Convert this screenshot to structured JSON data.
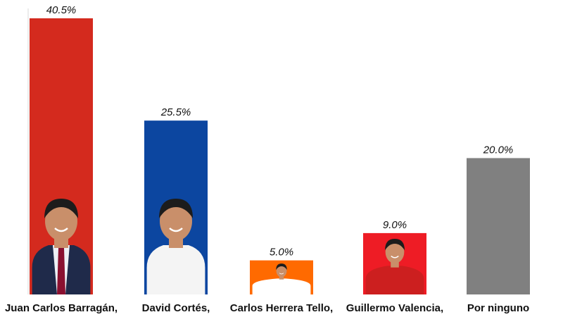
{
  "chart_data": {
    "type": "bar",
    "title": "",
    "xlabel": "",
    "ylabel": "",
    "ylim": [
      0,
      40.5
    ],
    "grid": false,
    "legend": "none",
    "categories": [
      "Juan Carlos Barragán,",
      "David Cortés,",
      "Carlos Herrera Tello,",
      "Guillermo Valencia,",
      "Por ninguno"
    ],
    "values": [
      40.5,
      25.5,
      5.0,
      9.0,
      20.0
    ],
    "value_labels": [
      "40.5%",
      "25.5%",
      "5.0%",
      "9.0%",
      "20.0%"
    ],
    "colors": [
      "#d42a1e",
      "#0c46a0",
      "#ff6a00",
      "#ee1c25",
      "#808080"
    ],
    "bar_images": [
      "candidate-photo",
      "candidate-photo",
      "candidate-photo",
      "candidate-photo",
      ""
    ]
  }
}
